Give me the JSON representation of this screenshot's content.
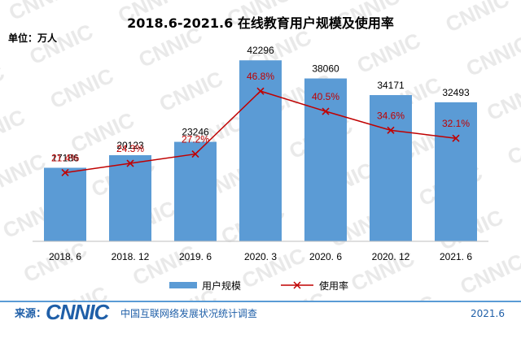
{
  "chart_data": {
    "type": "bar",
    "title": "2018.6-2021.6 在线教育用户规模及使用率",
    "unit_label": "单位：万人",
    "categories": [
      "2018. 6",
      "2018. 12",
      "2019. 6",
      "2020. 3",
      "2020. 6",
      "2020. 12",
      "2021. 6"
    ],
    "series": [
      {
        "name": "用户规模",
        "type": "bar",
        "values": [
          17186,
          20123,
          23246,
          42296,
          38060,
          34171,
          32493
        ],
        "color": "#5b9bd5"
      },
      {
        "name": "使用率",
        "type": "line",
        "values": [
          21.4,
          24.3,
          27.2,
          46.8,
          40.5,
          34.6,
          32.1
        ],
        "labels": [
          "21.4%",
          "24.3%",
          "27.2%",
          "46.8%",
          "40.5%",
          "34.6%",
          "32.1%"
        ],
        "color": "#c00000"
      }
    ],
    "ylim": [
      0,
      45000
    ],
    "ylim_secondary": [
      0,
      60
    ],
    "grid": false,
    "legend": "bottom-center"
  },
  "footer": {
    "source_label": "来源：",
    "logo_text": "CNNIC",
    "org_name": "中国互联网络发展状况统计调查",
    "date": "2021.6"
  },
  "colors": {
    "bar": "#5b9bd5",
    "line": "#c00000",
    "footer_text": "#1f5fa8",
    "footer_rule": "#5a9bd5"
  }
}
